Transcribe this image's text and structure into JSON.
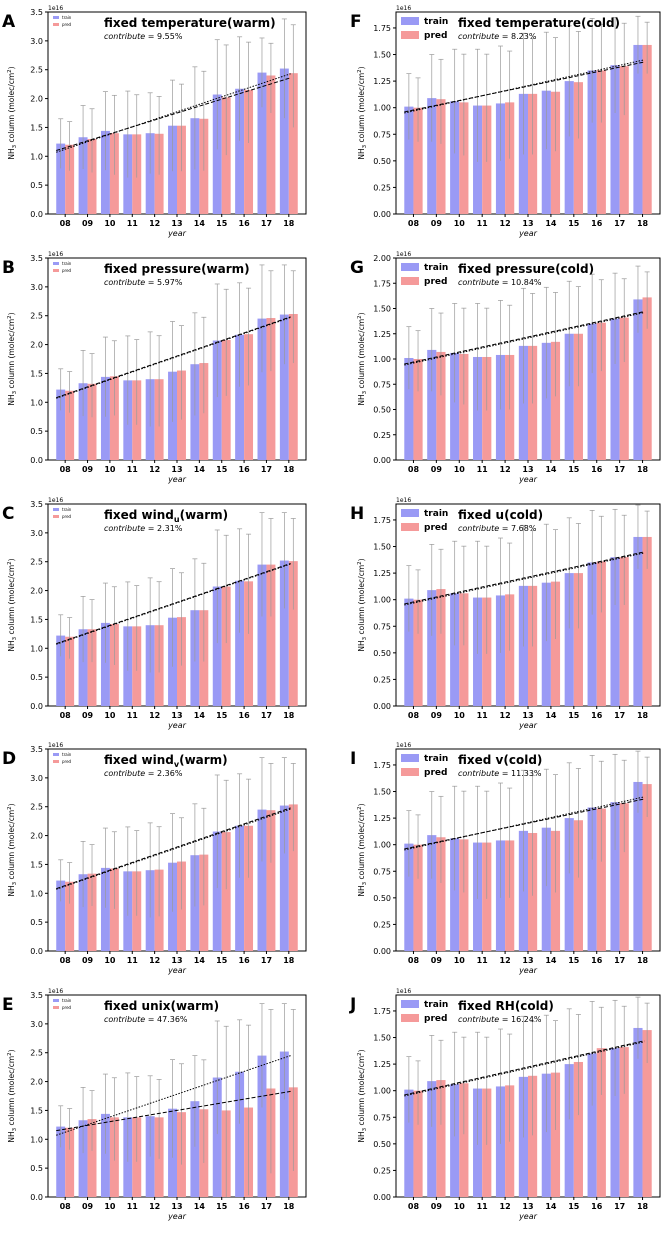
{
  "figure": {
    "x_categories": [
      "08",
      "09",
      "10",
      "11",
      "12",
      "13",
      "14",
      "15",
      "16",
      "17",
      "18"
    ],
    "xlabel": "year",
    "ylabel_prefix": "NH",
    "ylabel_sub": "3",
    "ylabel_suffix": " column (molec/cm",
    "ylabel_sup": "2",
    "ylabel_end": ")",
    "exponent_label": "1e16",
    "legend_train": "train",
    "legend_pred": "pred",
    "contribute_prefix": "contribute = ",
    "colors": {
      "train": "#9a9af5",
      "pred": "#f59a9a",
      "error": "#999999",
      "trend": "#000000"
    }
  },
  "chart_data": [
    {
      "type": "bar",
      "letter": "A",
      "title": "fixed temperature(warm)",
      "contribute": "9.55%",
      "ylim": [
        0,
        3.5
      ],
      "yticks": [
        "0.0",
        "0.5",
        "1.0",
        "1.5",
        "2.0",
        "2.5",
        "3.0",
        "3.5"
      ],
      "series": [
        {
          "name": "train",
          "values": [
            1.22,
            1.33,
            1.44,
            1.38,
            1.4,
            1.53,
            1.66,
            2.07,
            2.17,
            2.45,
            2.52
          ]
        },
        {
          "name": "pred",
          "values": [
            1.2,
            1.3,
            1.4,
            1.38,
            1.39,
            1.53,
            1.65,
            2.02,
            2.15,
            2.4,
            2.44
          ]
        }
      ],
      "error_upper": [
        1.65,
        1.88,
        2.12,
        2.13,
        2.1,
        2.32,
        2.55,
        3.02,
        3.07,
        3.05,
        3.38
      ],
      "trend_train": [
        1.07,
        2.43
      ],
      "trend_pred": [
        1.1,
        2.36
      ]
    },
    {
      "type": "bar",
      "letter": "B",
      "title": "fixed pressure(warm)",
      "contribute": "5.97%",
      "ylim": [
        0,
        3.5
      ],
      "yticks": [
        "0.0",
        "0.5",
        "1.0",
        "1.5",
        "2.0",
        "2.5",
        "3.0",
        "3.5"
      ],
      "series": [
        {
          "name": "train",
          "values": [
            1.22,
            1.33,
            1.44,
            1.38,
            1.4,
            1.53,
            1.66,
            2.07,
            2.17,
            2.45,
            2.52
          ]
        },
        {
          "name": "pred",
          "values": [
            1.2,
            1.32,
            1.45,
            1.38,
            1.4,
            1.55,
            1.68,
            2.08,
            2.18,
            2.46,
            2.53
          ]
        }
      ],
      "error_upper": [
        1.58,
        1.9,
        2.13,
        2.15,
        2.22,
        2.4,
        2.55,
        3.05,
        3.07,
        3.38,
        3.38
      ],
      "trend_train": [
        1.07,
        2.47
      ],
      "trend_pred": [
        1.08,
        2.48
      ]
    },
    {
      "type": "bar",
      "letter": "C",
      "title": "fixed wind",
      "title_sub": "u",
      "title_end": "(warm)",
      "contribute": "2.31%",
      "ylim": [
        0,
        3.5
      ],
      "yticks": [
        "0.0",
        "0.5",
        "1.0",
        "1.5",
        "2.0",
        "2.5",
        "3.0",
        "3.5"
      ],
      "series": [
        {
          "name": "train",
          "values": [
            1.22,
            1.33,
            1.44,
            1.38,
            1.4,
            1.53,
            1.66,
            2.07,
            2.17,
            2.45,
            2.52
          ]
        },
        {
          "name": "pred",
          "values": [
            1.2,
            1.33,
            1.42,
            1.38,
            1.4,
            1.54,
            1.66,
            2.07,
            2.16,
            2.45,
            2.51
          ]
        }
      ],
      "error_upper": [
        1.58,
        1.9,
        2.13,
        2.15,
        2.22,
        2.38,
        2.55,
        3.05,
        3.07,
        3.35,
        3.35
      ],
      "trend_train": [
        1.07,
        2.46
      ],
      "trend_pred": [
        1.08,
        2.47
      ]
    },
    {
      "type": "bar",
      "letter": "D",
      "title": "fixed wind",
      "title_sub": "v",
      "title_end": "(warm)",
      "contribute": "2.36%",
      "ylim": [
        0,
        3.5
      ],
      "yticks": [
        "0.0",
        "0.5",
        "1.0",
        "1.5",
        "2.0",
        "2.5",
        "3.0",
        "3.5"
      ],
      "series": [
        {
          "name": "train",
          "values": [
            1.22,
            1.33,
            1.44,
            1.38,
            1.4,
            1.53,
            1.66,
            2.07,
            2.17,
            2.45,
            2.52
          ]
        },
        {
          "name": "pred",
          "values": [
            1.2,
            1.34,
            1.43,
            1.38,
            1.41,
            1.55,
            1.67,
            2.06,
            2.17,
            2.44,
            2.54
          ]
        }
      ],
      "error_upper": [
        1.58,
        1.9,
        2.13,
        2.15,
        2.22,
        2.38,
        2.55,
        3.05,
        3.07,
        3.35,
        3.35
      ],
      "trend_train": [
        1.07,
        2.46
      ],
      "trend_pred": [
        1.08,
        2.48
      ]
    },
    {
      "type": "bar",
      "letter": "E",
      "title": "fixed unix(warm)",
      "contribute": "47.36%",
      "ylim": [
        0,
        3.5
      ],
      "yticks": [
        "0.0",
        "0.5",
        "1.0",
        "1.5",
        "2.0",
        "2.5",
        "3.0",
        "3.5"
      ],
      "series": [
        {
          "name": "train",
          "values": [
            1.22,
            1.33,
            1.44,
            1.38,
            1.4,
            1.53,
            1.66,
            2.07,
            2.17,
            2.45,
            2.52
          ]
        },
        {
          "name": "pred",
          "values": [
            1.2,
            1.35,
            1.38,
            1.38,
            1.38,
            1.47,
            1.52,
            1.5,
            1.55,
            1.88,
            1.9
          ]
        }
      ],
      "error_upper": [
        1.58,
        1.9,
        2.13,
        2.15,
        2.1,
        2.38,
        2.45,
        3.05,
        3.07,
        3.35,
        3.35
      ],
      "trend_train": [
        1.07,
        2.45
      ],
      "trend_pred": [
        1.15,
        1.83
      ]
    },
    {
      "type": "bar",
      "letter": "F",
      "title": "fixed temperature(cold)",
      "contribute": "8.23%",
      "ylim": [
        0,
        1.9
      ],
      "yticks": [
        "0.00",
        "0.25",
        "0.50",
        "0.75",
        "1.00",
        "1.25",
        "1.50",
        "1.75"
      ],
      "series": [
        {
          "name": "train",
          "values": [
            1.01,
            1.09,
            1.06,
            1.02,
            1.04,
            1.13,
            1.16,
            1.25,
            1.35,
            1.4,
            1.59
          ]
        },
        {
          "name": "pred",
          "values": [
            1.0,
            1.08,
            1.05,
            1.02,
            1.05,
            1.13,
            1.15,
            1.24,
            1.35,
            1.39,
            1.59
          ]
        }
      ],
      "error_upper": [
        1.32,
        1.5,
        1.55,
        1.55,
        1.58,
        1.7,
        1.71,
        1.77,
        1.84,
        1.85,
        1.86
      ],
      "trend_train": [
        0.95,
        1.45
      ],
      "trend_pred": [
        0.96,
        1.43
      ]
    },
    {
      "type": "bar",
      "letter": "G",
      "title": "fixed pressure(cold)",
      "contribute": "10.84%",
      "ylim": [
        0,
        2.0
      ],
      "yticks": [
        "0.00",
        "0.25",
        "0.50",
        "0.75",
        "1.00",
        "1.25",
        "1.50",
        "1.75",
        "2.00"
      ],
      "series": [
        {
          "name": "train",
          "values": [
            1.01,
            1.09,
            1.06,
            1.02,
            1.04,
            1.13,
            1.16,
            1.25,
            1.35,
            1.4,
            1.59
          ]
        },
        {
          "name": "pred",
          "values": [
            1.0,
            1.07,
            1.05,
            1.02,
            1.04,
            1.13,
            1.17,
            1.25,
            1.36,
            1.41,
            1.61
          ]
        }
      ],
      "error_upper": [
        1.32,
        1.5,
        1.55,
        1.55,
        1.58,
        1.7,
        1.71,
        1.77,
        1.84,
        1.85,
        1.92
      ],
      "trend_train": [
        0.94,
        1.46
      ],
      "trend_pred": [
        0.95,
        1.47
      ]
    },
    {
      "type": "bar",
      "letter": "H",
      "title": "fixed u(cold)",
      "contribute": "7.68%",
      "ylim": [
        0,
        1.9
      ],
      "yticks": [
        "0.00",
        "0.25",
        "0.50",
        "0.75",
        "1.00",
        "1.25",
        "1.50",
        "1.75"
      ],
      "series": [
        {
          "name": "train",
          "values": [
            1.01,
            1.09,
            1.06,
            1.02,
            1.04,
            1.13,
            1.16,
            1.25,
            1.35,
            1.4,
            1.59
          ]
        },
        {
          "name": "pred",
          "values": [
            1.0,
            1.1,
            1.06,
            1.02,
            1.05,
            1.13,
            1.17,
            1.25,
            1.36,
            1.4,
            1.59
          ]
        }
      ],
      "error_upper": [
        1.32,
        1.52,
        1.55,
        1.55,
        1.58,
        1.7,
        1.71,
        1.77,
        1.84,
        1.85,
        1.89
      ],
      "trend_train": [
        0.95,
        1.44
      ],
      "trend_pred": [
        0.96,
        1.45
      ]
    },
    {
      "type": "bar",
      "letter": "I",
      "title": "fixed v(cold)",
      "contribute": "11.33%",
      "ylim": [
        0,
        1.9
      ],
      "yticks": [
        "0.00",
        "0.25",
        "0.50",
        "0.75",
        "1.00",
        "1.25",
        "1.50",
        "1.75"
      ],
      "series": [
        {
          "name": "train",
          "values": [
            1.01,
            1.09,
            1.06,
            1.02,
            1.04,
            1.13,
            1.16,
            1.25,
            1.35,
            1.4,
            1.59
          ]
        },
        {
          "name": "pred",
          "values": [
            1.0,
            1.07,
            1.05,
            1.02,
            1.04,
            1.11,
            1.13,
            1.23,
            1.34,
            1.39,
            1.57
          ]
        }
      ],
      "error_upper": [
        1.32,
        1.5,
        1.55,
        1.55,
        1.58,
        1.7,
        1.71,
        1.77,
        1.84,
        1.85,
        1.88
      ],
      "trend_train": [
        0.95,
        1.45
      ],
      "trend_pred": [
        0.96,
        1.43
      ]
    },
    {
      "type": "bar",
      "letter": "J",
      "title": "fixed RH(cold)",
      "contribute": "16.24%",
      "ylim": [
        0,
        1.9
      ],
      "yticks": [
        "0.00",
        "0.25",
        "0.50",
        "0.75",
        "1.00",
        "1.25",
        "1.50",
        "1.75"
      ],
      "series": [
        {
          "name": "train",
          "values": [
            1.01,
            1.09,
            1.06,
            1.02,
            1.04,
            1.13,
            1.16,
            1.25,
            1.35,
            1.4,
            1.59
          ]
        },
        {
          "name": "pred",
          "values": [
            1.0,
            1.1,
            1.07,
            1.02,
            1.05,
            1.14,
            1.17,
            1.27,
            1.4,
            1.41,
            1.57
          ]
        }
      ],
      "error_upper": [
        1.32,
        1.52,
        1.55,
        1.55,
        1.58,
        1.7,
        1.71,
        1.77,
        1.84,
        1.85,
        1.88
      ],
      "trend_train": [
        0.95,
        1.46
      ],
      "trend_pred": [
        0.96,
        1.47
      ]
    }
  ]
}
